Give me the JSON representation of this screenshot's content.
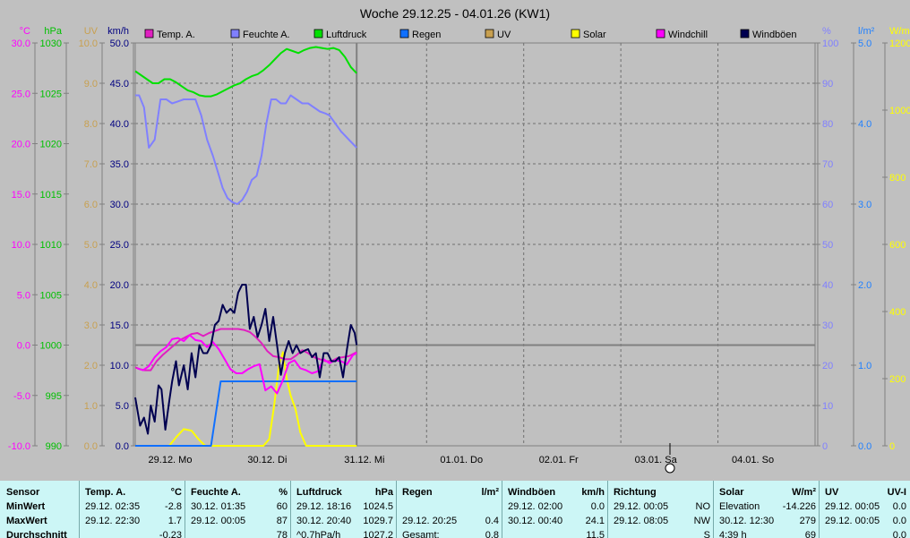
{
  "chart_data": {
    "type": "line",
    "title": "Woche 29.12.25 - 04.01.26 (KW1)",
    "x_labels": [
      "29.12. Mo",
      "30.12. Di",
      "31.12. Mi",
      "01.01. Do",
      "02.01. Fr",
      "03.01. Sa",
      "04.01. So"
    ],
    "x_range_days": [
      0,
      7
    ],
    "grid": true,
    "axes": {
      "temp": {
        "unit": "°C",
        "color": "#ff00ff",
        "range": [
          -10,
          30
        ],
        "ticks": [
          "30.0",
          "25.0",
          "20.0",
          "15.0",
          "10.0",
          "5.0",
          "0.0",
          "-5.0",
          "-10.0"
        ]
      },
      "press": {
        "unit": "hPa",
        "color": "#00c000",
        "range": [
          990,
          1030
        ],
        "ticks": [
          "1030",
          "1025",
          "1020",
          "1015",
          "1010",
          "1005",
          "1000",
          "995",
          "990"
        ]
      },
      "uv": {
        "unit": "UV",
        "color": "#c8a050",
        "range": [
          0,
          10
        ],
        "ticks": [
          "10.0",
          "9.0",
          "8.0",
          "7.0",
          "6.0",
          "5.0",
          "4.0",
          "3.0",
          "2.0",
          "1.0",
          "0.0"
        ]
      },
      "wind": {
        "unit": "km/h",
        "color": "#000080",
        "range": [
          0,
          50
        ],
        "ticks": [
          "50.0",
          "45.0",
          "40.0",
          "35.0",
          "30.0",
          "25.0",
          "20.0",
          "15.0",
          "10.0",
          "5.0",
          "0.0"
        ]
      },
      "hum": {
        "unit": "%",
        "color": "#8080ff",
        "range": [
          0,
          100
        ],
        "ticks": [
          "100",
          "90",
          "80",
          "70",
          "60",
          "50",
          "40",
          "30",
          "20",
          "10",
          "0"
        ]
      },
      "rain": {
        "unit": "l/m²",
        "color": "#2080ff",
        "range": [
          0,
          5
        ],
        "ticks": [
          "5.0",
          "4.0",
          "3.0",
          "2.0",
          "1.0",
          "0.0"
        ]
      },
      "solar": {
        "unit": "W/m²",
        "color": "#ffff00",
        "range": [
          0,
          1200
        ],
        "ticks": [
          "1200",
          "1000",
          "800",
          "600",
          "400",
          "200",
          "0"
        ]
      }
    },
    "legend": [
      {
        "name": "Temp. A.",
        "color": "#e020c0"
      },
      {
        "name": "Feuchte A.",
        "color": "#8080ff"
      },
      {
        "name": "Luftdruck",
        "color": "#00e000"
      },
      {
        "name": "Regen",
        "color": "#1070ff"
      },
      {
        "name": "UV",
        "color": "#c8a050"
      },
      {
        "name": "Solar",
        "color": "#ffff00"
      },
      {
        "name": "Windchill",
        "color": "#ff00ff"
      },
      {
        "name": "Windböen",
        "color": "#000050"
      }
    ],
    "series": [
      {
        "key": "humidity",
        "axis": "hum",
        "color": "#8080ff",
        "x": [
          0,
          0.04,
          0.09,
          0.14,
          0.2,
          0.26,
          0.32,
          0.38,
          0.44,
          0.5,
          0.56,
          0.62,
          0.68,
          0.74,
          0.8,
          0.85,
          0.9,
          0.95,
          1.0,
          1.05,
          1.1,
          1.15,
          1.2,
          1.25,
          1.3,
          1.35,
          1.4,
          1.45,
          1.5,
          1.55,
          1.6,
          1.66,
          1.72,
          1.78,
          1.84,
          1.9,
          1.96,
          2.0,
          2.06,
          2.12,
          2.2,
          2.28
        ],
        "y": [
          87,
          87,
          84,
          74,
          76,
          86,
          86,
          85,
          85.5,
          86,
          86,
          86,
          82,
          76,
          72,
          68,
          64,
          61.5,
          60.5,
          60,
          61,
          63,
          66,
          67,
          72,
          80,
          86,
          86,
          85,
          85,
          87,
          86,
          85,
          85,
          84,
          83,
          82.5,
          82,
          80,
          78,
          76,
          74
        ]
      },
      {
        "key": "pressure",
        "axis": "press",
        "color": "#00e000",
        "x": [
          0,
          0.06,
          0.12,
          0.18,
          0.24,
          0.3,
          0.36,
          0.42,
          0.48,
          0.54,
          0.6,
          0.66,
          0.72,
          0.78,
          0.84,
          0.9,
          0.96,
          1.02,
          1.08,
          1.14,
          1.2,
          1.26,
          1.32,
          1.38,
          1.44,
          1.5,
          1.56,
          1.62,
          1.68,
          1.74,
          1.8,
          1.86,
          1.92,
          1.98,
          2.04,
          2.1,
          2.16,
          2.22,
          2.28
        ],
        "y": [
          1027.2,
          1026.8,
          1026.4,
          1026,
          1026,
          1026.4,
          1026.4,
          1026.1,
          1025.7,
          1025.3,
          1025.1,
          1024.8,
          1024.7,
          1024.7,
          1024.9,
          1025.2,
          1025.5,
          1025.8,
          1026,
          1026.4,
          1026.7,
          1026.9,
          1027.3,
          1027.8,
          1028.4,
          1029,
          1029.4,
          1029.2,
          1029,
          1029.3,
          1029.5,
          1029.6,
          1029.5,
          1029.4,
          1029.5,
          1029.3,
          1028.6,
          1027.6,
          1027
        ]
      },
      {
        "key": "temperature",
        "axis": "temp",
        "color": "#e020c0",
        "x": [
          0,
          0.05,
          0.1,
          0.16,
          0.22,
          0.28,
          0.34,
          0.4,
          0.46,
          0.52,
          0.58,
          0.64,
          0.7,
          0.76,
          0.82,
          0.88,
          0.94,
          1.0,
          1.06,
          1.12,
          1.18,
          1.24,
          1.3,
          1.36,
          1.42,
          1.48,
          1.54,
          1.6,
          1.66,
          1.72,
          1.78,
          1.84,
          1.9,
          1.96,
          2.02,
          2.08,
          2.14,
          2.2,
          2.26,
          2.28
        ],
        "y": [
          -2.2,
          -2.4,
          -2.5,
          -2.5,
          -1.6,
          -1,
          -0.5,
          0,
          0.5,
          0.8,
          1.1,
          1.2,
          0.9,
          1.2,
          1.4,
          1.6,
          1.6,
          1.6,
          1.6,
          1.5,
          1.3,
          0.8,
          0.2,
          -0.6,
          -1.1,
          -1.2,
          -1.4,
          -1.4,
          -1,
          -0.5,
          -0.8,
          -1.2,
          -1.4,
          -1.6,
          -1.6,
          -1.3,
          -1.2,
          -1.1,
          -0.8,
          -0.7
        ]
      },
      {
        "key": "windchill",
        "axis": "temp",
        "color": "#ff00ff",
        "x": [
          0.02,
          0.08,
          0.14,
          0.2,
          0.26,
          0.32,
          0.38,
          0.44,
          0.5,
          0.56,
          0.62,
          0.68,
          0.74,
          0.8,
          0.86,
          0.92,
          0.98,
          1.04,
          1.1,
          1.16,
          1.22,
          1.28,
          1.34,
          1.4,
          1.46,
          1.52,
          1.58,
          1.64,
          1.7,
          1.76,
          1.82,
          1.88,
          1.94,
          2.0,
          2.06,
          2.12,
          2.18,
          2.24,
          2.28
        ],
        "y": [
          -2.3,
          -2.5,
          -2.1,
          -1.2,
          -0.6,
          -0.2,
          0.6,
          0.7,
          0.4,
          1,
          0.5,
          0.4,
          -0.2,
          0.3,
          -0.4,
          -1.4,
          -2.4,
          -2.8,
          -2.8,
          -2.4,
          -2.1,
          -1.9,
          -4.5,
          -4.1,
          -4.8,
          -3.5,
          -1.8,
          -1.5,
          -2.3,
          -2.5,
          -2.8,
          -2.6,
          -1.4,
          -1.8,
          -1.5,
          -1.6,
          -1.9,
          -1,
          -0.8
        ]
      },
      {
        "key": "gusts",
        "axis": "wind",
        "color": "#000050",
        "x": [
          0,
          0.05,
          0.09,
          0.13,
          0.16,
          0.2,
          0.24,
          0.27,
          0.31,
          0.35,
          0.38,
          0.42,
          0.45,
          0.5,
          0.54,
          0.58,
          0.62,
          0.66,
          0.7,
          0.74,
          0.78,
          0.82,
          0.86,
          0.9,
          0.94,
          0.98,
          1.02,
          1.06,
          1.1,
          1.14,
          1.18,
          1.22,
          1.26,
          1.3,
          1.34,
          1.38,
          1.42,
          1.46,
          1.5,
          1.54,
          1.58,
          1.62,
          1.66,
          1.7,
          1.74,
          1.78,
          1.82,
          1.86,
          1.9,
          1.94,
          1.98,
          2.02,
          2.06,
          2.1,
          2.14,
          2.18,
          2.22,
          2.26,
          2.28
        ],
        "y": [
          6,
          2.5,
          3.5,
          1.5,
          5,
          3,
          7.5,
          7,
          2,
          5.5,
          8,
          10.5,
          7.5,
          10,
          7,
          11.5,
          8.5,
          12.5,
          11.5,
          11.5,
          12.5,
          15,
          15.5,
          17.5,
          16.5,
          17,
          16.5,
          19,
          20,
          20,
          14.5,
          16,
          13.5,
          15,
          17,
          13,
          16,
          12.5,
          8.8,
          11.5,
          13,
          11.5,
          12.5,
          11.5,
          11.8,
          12,
          11,
          11.5,
          8.5,
          11.5,
          11.5,
          10.5,
          10.5,
          11,
          8.5,
          12,
          15,
          14,
          12.5
        ]
      },
      {
        "key": "rain",
        "axis": "rain",
        "color": "#1070ff",
        "x": [
          0,
          0.78,
          0.88,
          0.9,
          2.28
        ],
        "y": [
          0,
          0,
          0.8,
          0.8,
          0.8
        ]
      },
      {
        "key": "solar",
        "axis": "solar",
        "color": "#ffff00",
        "x": [
          0,
          0.35,
          0.42,
          0.5,
          0.58,
          0.65,
          0.72,
          1.32,
          1.38,
          1.43,
          1.48,
          1.52,
          1.56,
          1.6,
          1.65,
          1.7,
          1.76,
          2.28
        ],
        "y": [
          0,
          0,
          25,
          50,
          45,
          20,
          0,
          0,
          20,
          120,
          240,
          279,
          200,
          150,
          110,
          40,
          0,
          0
        ]
      }
    ]
  },
  "table": {
    "cols": [
      {
        "rows": [
          [
            "Sensor"
          ],
          [
            "MinWert"
          ],
          [
            "MaxWert"
          ],
          [
            "Durchschnitt"
          ]
        ]
      },
      {
        "rows": [
          [
            "Temp. A.",
            "°C"
          ],
          [
            "29.12.  02:35",
            "-2.8"
          ],
          [
            "29.12.  22:30",
            "1.7"
          ],
          [
            "",
            "-0.23"
          ]
        ]
      },
      {
        "rows": [
          [
            "Feuchte A.",
            "%"
          ],
          [
            "30.12.  01:35",
            "60"
          ],
          [
            "29.12.  00:05",
            "87"
          ],
          [
            "",
            "78"
          ]
        ]
      },
      {
        "rows": [
          [
            "Luftdruck",
            "hPa"
          ],
          [
            "29.12.  18:16",
            "1024.5"
          ],
          [
            "30.12.  20:40",
            "1029.7"
          ],
          [
            "^0.7hPa/h",
            "1027.2"
          ]
        ]
      },
      {
        "rows": [
          [
            "Regen",
            "l/m²"
          ],
          [
            "",
            ""
          ],
          [
            "29.12.  20:25",
            "0.4"
          ],
          [
            "Gesamt:",
            "0.8"
          ]
        ]
      },
      {
        "rows": [
          [
            "Windböen",
            "km/h"
          ],
          [
            "29.12.  02:00",
            "0.0"
          ],
          [
            "30.12.  00:40",
            "24.1"
          ],
          [
            "",
            "11.5"
          ]
        ]
      },
      {
        "rows": [
          [
            "Richtung",
            ""
          ],
          [
            "29.12.  00:05",
            "NO"
          ],
          [
            "29.12.  08:05",
            "NW"
          ],
          [
            "",
            "S"
          ]
        ]
      },
      {
        "rows": [
          [
            "Solar",
            "W/m²"
          ],
          [
            "Elevation",
            "-14.226"
          ],
          [
            "30.12.  12:30",
            "279"
          ],
          [
            "4:39 h",
            "69"
          ]
        ]
      },
      {
        "rows": [
          [
            "UV",
            "UV-I"
          ],
          [
            "29.12.  00:05",
            "0.0"
          ],
          [
            "29.12.  00:05",
            "0.0"
          ],
          [
            "",
            "0.0"
          ]
        ]
      }
    ]
  }
}
